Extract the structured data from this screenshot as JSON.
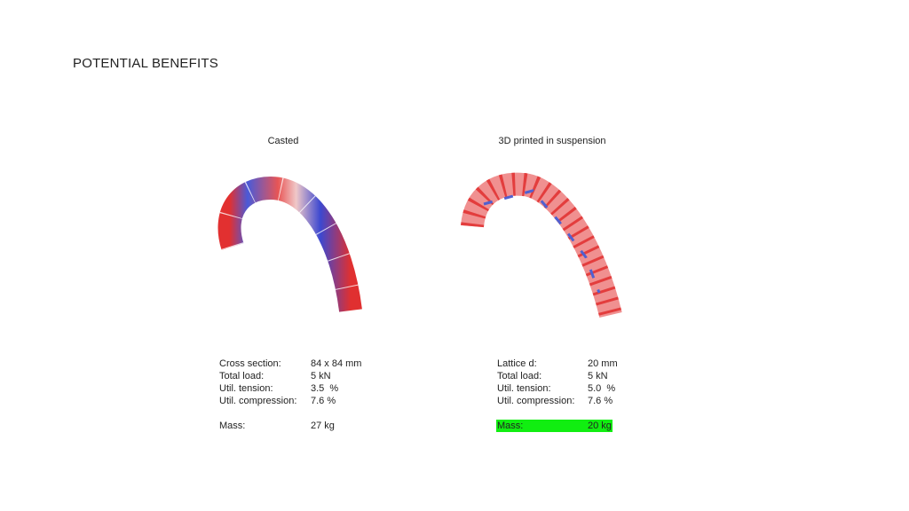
{
  "title": "POTENTIAL BENEFITS",
  "panels": [
    {
      "heading": "Casted",
      "rows": [
        [
          "Cross section:",
          "84 x 84 mm"
        ],
        [
          "Total load:",
          "5 kN"
        ],
        [
          "Util. tension:",
          "3.5  %"
        ],
        [
          "Util. compression:",
          "7.6 %"
        ]
      ],
      "mass": [
        "Mass:",
        "27 kg"
      ]
    },
    {
      "heading": "3D printed in suspension",
      "rows": [
        [
          "Lattice d:",
          "20 mm"
        ],
        [
          "Total load:",
          "5 kN"
        ],
        [
          "Util. tension:",
          "5.0  %"
        ],
        [
          "Util. compression:",
          "7.6 %"
        ]
      ],
      "mass": [
        "Mass:",
        "20 kg"
      ]
    }
  ]
}
